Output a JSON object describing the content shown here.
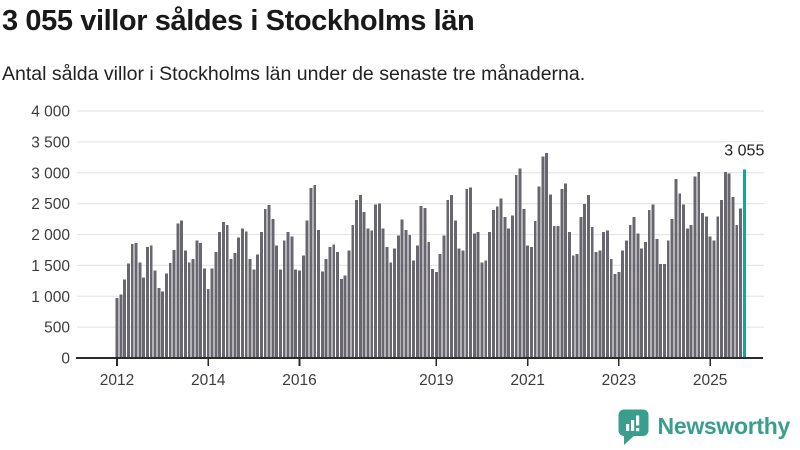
{
  "header": {
    "title": "3 055 villor såldes i Stockholms län",
    "subtitle": "Antal sålda villor i Stockholms län under de senaste tre månaderna."
  },
  "chart_data": {
    "type": "bar",
    "title": "3 055 villor såldes i Stockholms län",
    "xlabel": "",
    "ylabel": "Antal sålda villor",
    "ylim": [
      0,
      4000
    ],
    "grid": true,
    "frequency": "monthly",
    "start": "2012-01",
    "end": "2025-10",
    "yticks": [
      {
        "value": 4000,
        "label": "4 000"
      },
      {
        "value": 3500,
        "label": "3 500"
      },
      {
        "value": 3000,
        "label": "3 000"
      },
      {
        "value": 2500,
        "label": "2 500"
      },
      {
        "value": 2000,
        "label": "2 000"
      },
      {
        "value": 1500,
        "label": "1 500"
      },
      {
        "value": 1000,
        "label": "1 000"
      },
      {
        "value": 500,
        "label": "500"
      },
      {
        "value": 0,
        "label": "0"
      }
    ],
    "xticks": [
      {
        "label": "2012",
        "month_index": 0
      },
      {
        "label": "2014",
        "month_index": 24
      },
      {
        "label": "2016",
        "month_index": 48
      },
      {
        "label": "2019",
        "month_index": 84
      },
      {
        "label": "2021",
        "month_index": 108
      },
      {
        "label": "2023",
        "month_index": 132
      },
      {
        "label": "2025",
        "month_index": 156
      }
    ],
    "values": [
      970,
      1030,
      1275,
      1530,
      1845,
      1865,
      1545,
      1300,
      1800,
      1820,
      1420,
      1130,
      1075,
      1370,
      1540,
      1750,
      2180,
      2230,
      1745,
      1550,
      1600,
      1900,
      1860,
      1450,
      1115,
      1450,
      1715,
      2040,
      2200,
      2150,
      1600,
      1700,
      1950,
      2100,
      2050,
      1600,
      1430,
      1675,
      2040,
      2410,
      2475,
      2250,
      1820,
      1430,
      1900,
      2040,
      1965,
      1430,
      1415,
      1660,
      2230,
      2750,
      2800,
      2070,
      1400,
      1605,
      1795,
      1835,
      1715,
      1280,
      1335,
      1740,
      2150,
      2555,
      2640,
      2365,
      2095,
      2065,
      2485,
      2500,
      2095,
      1795,
      1550,
      1770,
      1985,
      2245,
      2070,
      1990,
      1580,
      1820,
      2465,
      2430,
      1875,
      1440,
      1390,
      1685,
      1985,
      2555,
      2640,
      2230,
      1770,
      1740,
      2735,
      2760,
      2015,
      2040,
      1550,
      1580,
      2040,
      2395,
      2450,
      2585,
      2285,
      2095,
      2310,
      2965,
      3065,
      2410,
      1820,
      1795,
      2215,
      2775,
      3265,
      3320,
      2650,
      2140,
      2140,
      2735,
      2830,
      2040,
      1660,
      1685,
      2285,
      2490,
      2640,
      2120,
      1715,
      1740,
      2040,
      2065,
      1605,
      1360,
      1390,
      1740,
      1905,
      2150,
      2285,
      2015,
      1770,
      1875,
      2395,
      2485,
      1930,
      1525,
      1525,
      1905,
      2255,
      2900,
      2665,
      2485,
      2095,
      2150,
      2940,
      3010,
      2350,
      2290,
      1965,
      1900,
      2290,
      2560,
      3015,
      2990,
      2610,
      2155,
      2420,
      3055
    ],
    "highlight_last": true,
    "annotation": {
      "label": "3 055",
      "value": 3055
    },
    "legend": null,
    "colors": {
      "bar": "#68666F",
      "highlight": "#17A2A0",
      "grid": "#E6E6E6",
      "axis": "#2B2B2B",
      "tick_label": "#3C3C3C",
      "annotation_text": "#222222"
    }
  },
  "footer": {
    "brand": "Newsworthy",
    "brand_color": "#3A9E8C"
  }
}
